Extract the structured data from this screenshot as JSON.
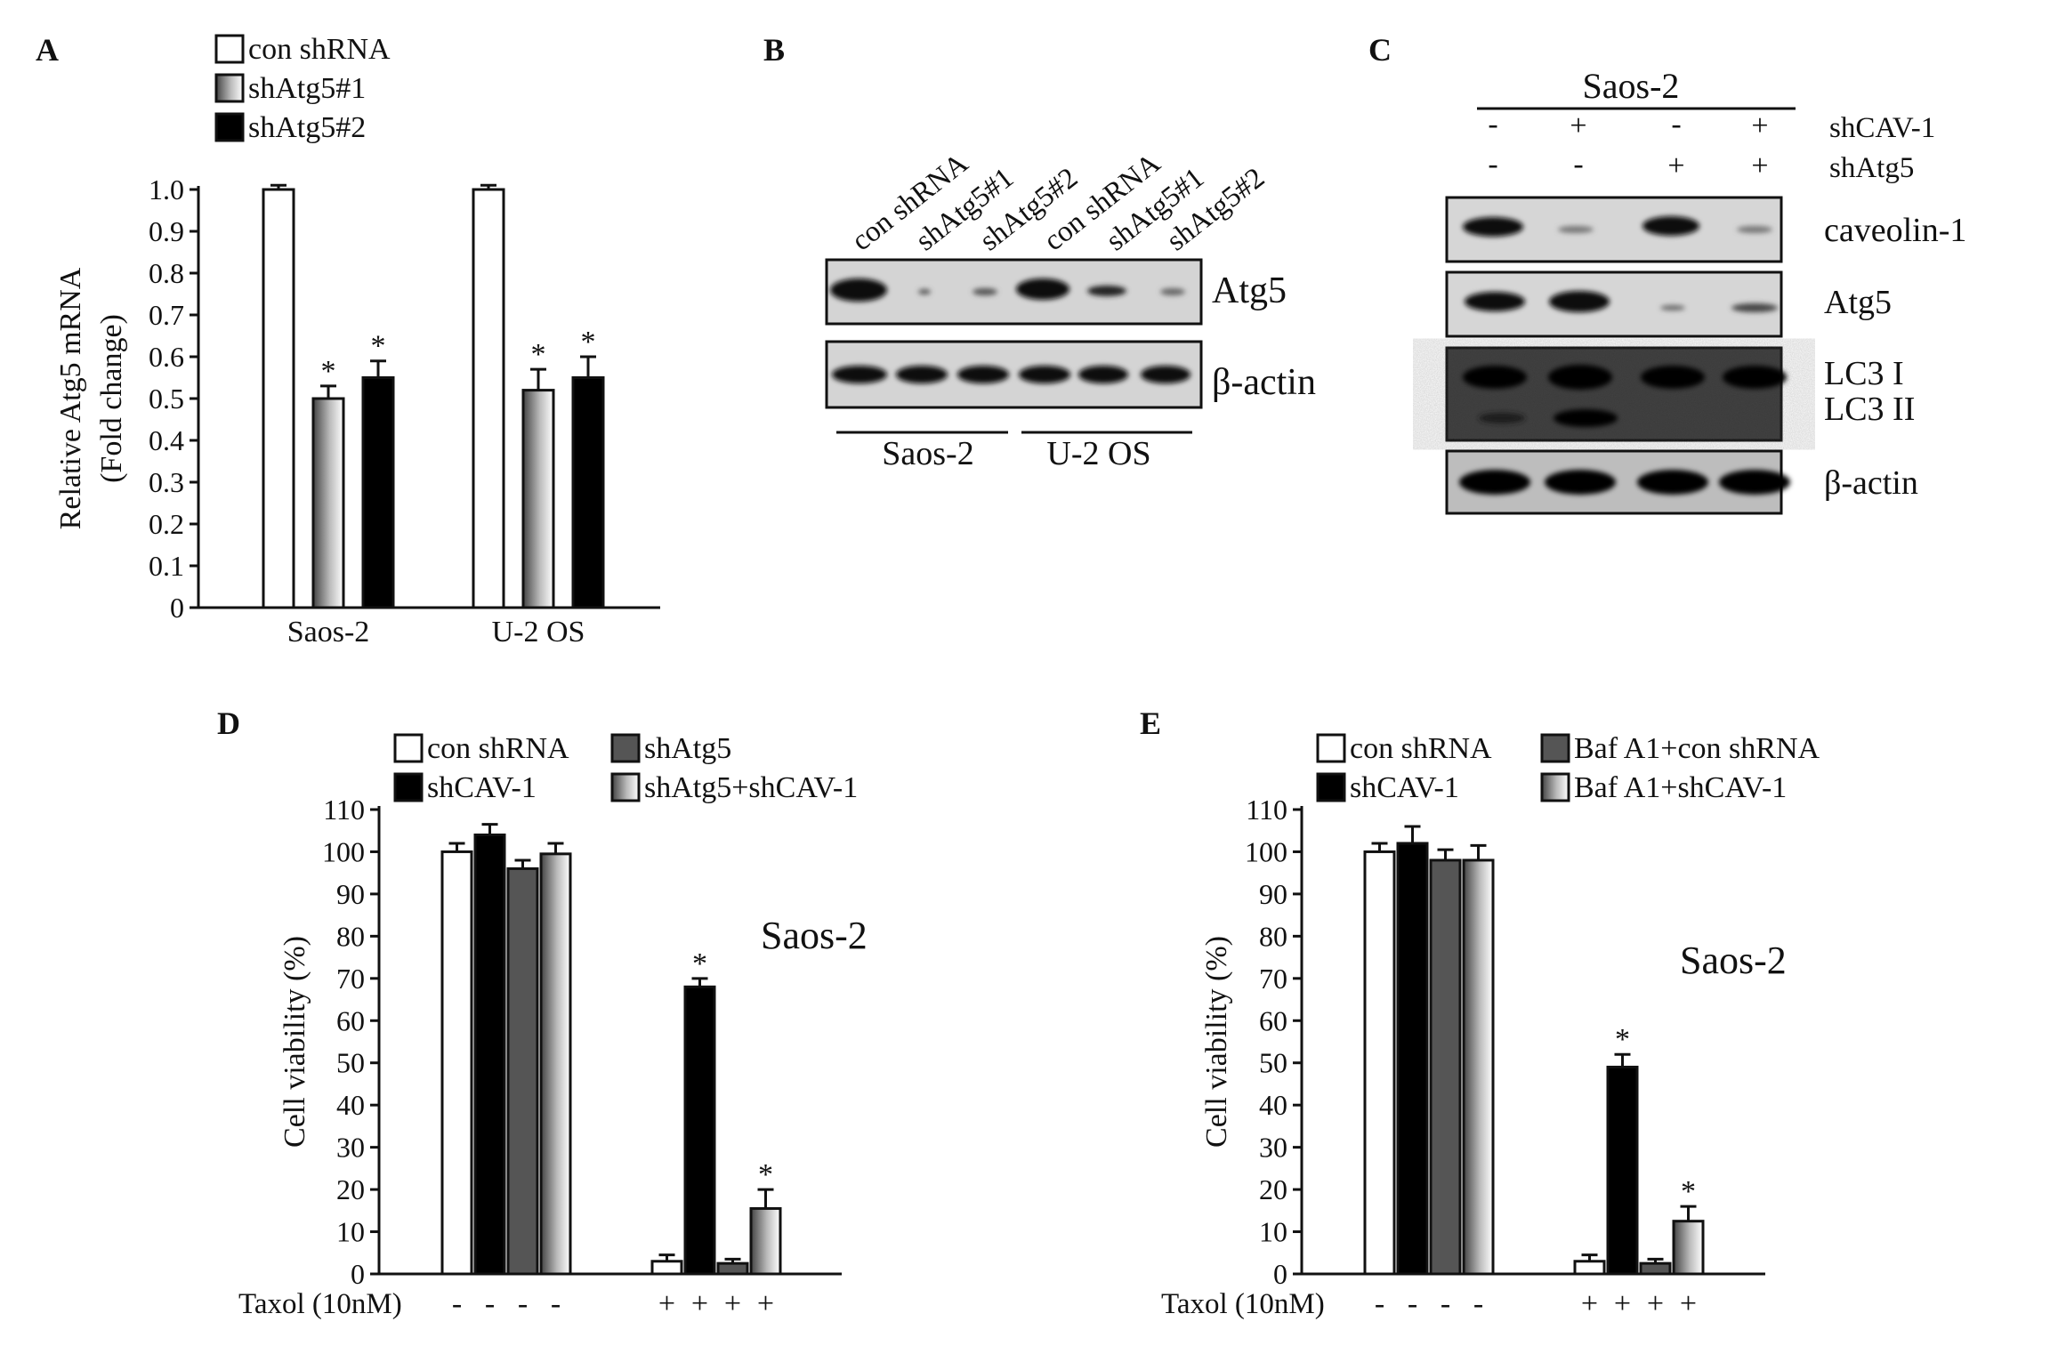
{
  "panels": {
    "A": {
      "letter": "A",
      "legend": [
        {
          "name": "con shRNA",
          "fill": "white"
        },
        {
          "name": "shAtg5#1",
          "fill": "gradient"
        },
        {
          "name": "shAtg5#2",
          "fill": "black"
        }
      ],
      "ylabel_line1": "Relative Atg5 mRNA",
      "ylabel_line2": "(Fold change)",
      "y_ticks": [
        "0",
        "0.1",
        "0.2",
        "0.3",
        "0.4",
        "0.5",
        "0.6",
        "0.7",
        "0.8",
        "0.9",
        "1.0"
      ],
      "star": "*"
    },
    "B": {
      "letter": "B",
      "lanes": [
        "con shRNA",
        "shAtg5#1",
        "shAtg5#2",
        "con shRNA",
        "shAtg5#1",
        "shAtg5#2"
      ],
      "bands": [
        "Atg5",
        "β-actin"
      ],
      "groups": [
        "Saos-2",
        "U-2 OS"
      ]
    },
    "C": {
      "letter": "C",
      "cell_line": "Saos-2",
      "rows": [
        {
          "label": "shCAV-1",
          "signs": [
            "-",
            "+",
            "-",
            "+"
          ]
        },
        {
          "label": "shAtg5",
          "signs": [
            "-",
            "-",
            "+",
            "+"
          ]
        }
      ],
      "bands": [
        "caveolin-1",
        "Atg5",
        "LC3 I",
        "LC3 II",
        "β-actin"
      ]
    },
    "D": {
      "letter": "D",
      "legend": [
        {
          "name": "con shRNA",
          "fill": "white"
        },
        {
          "name": "shCAV-1",
          "fill": "black"
        },
        {
          "name": "shAtg5",
          "fill": "#555555"
        },
        {
          "name": "shAtg5+shCAV-1",
          "fill": "gradient"
        }
      ],
      "ylabel": "Cell viability (%)",
      "y_ticks": [
        "0",
        "10",
        "20",
        "30",
        "40",
        "50",
        "60",
        "70",
        "80",
        "90",
        "100",
        "110"
      ],
      "annotation": "Saos-2",
      "taxol_label": "Taxol (10nM)",
      "taxol_signs": [
        "-",
        "-",
        "-",
        "-",
        "+",
        "+",
        "+",
        "+"
      ],
      "star": "*"
    },
    "E": {
      "letter": "E",
      "legend": [
        {
          "name": "con shRNA",
          "fill": "white"
        },
        {
          "name": "shCAV-1",
          "fill": "black"
        },
        {
          "name": "Baf A1+con shRNA",
          "fill": "#555555"
        },
        {
          "name": "Baf A1+shCAV-1",
          "fill": "gradient"
        }
      ],
      "ylabel": "Cell viability (%)",
      "y_ticks": [
        "0",
        "10",
        "20",
        "30",
        "40",
        "50",
        "60",
        "70",
        "80",
        "90",
        "100",
        "110"
      ],
      "annotation": "Saos-2",
      "taxol_label": "Taxol (10nM)",
      "taxol_signs": [
        "-",
        "-",
        "-",
        "-",
        "+",
        "+",
        "+",
        "+"
      ],
      "star": "*"
    }
  },
  "chart_data": [
    {
      "panel": "A",
      "type": "bar",
      "categories": [
        "Saos-2",
        "U-2 OS"
      ],
      "ylabel": "Relative Atg5 mRNA (Fold change)",
      "ylim": [
        0,
        1.0
      ],
      "series": [
        {
          "name": "con shRNA",
          "values": [
            1.0,
            1.0
          ],
          "errors": [
            0.01,
            0.01
          ],
          "significant": [
            false,
            false
          ]
        },
        {
          "name": "shAtg5#1",
          "values": [
            0.5,
            0.52
          ],
          "errors": [
            0.03,
            0.05
          ],
          "significant": [
            true,
            true
          ]
        },
        {
          "name": "shAtg5#2",
          "values": [
            0.55,
            0.55
          ],
          "errors": [
            0.04,
            0.05
          ],
          "significant": [
            true,
            true
          ]
        }
      ]
    },
    {
      "panel": "D",
      "type": "bar",
      "categories": [
        "-",
        "+"
      ],
      "xlabel": "Taxol (10nM)",
      "ylabel": "Cell viability (%)",
      "ylim": [
        0,
        110
      ],
      "series": [
        {
          "name": "con shRNA",
          "values": [
            100,
            3
          ],
          "errors": [
            2,
            1.5
          ],
          "significant": [
            false,
            false
          ]
        },
        {
          "name": "shCAV-1",
          "values": [
            104,
            68
          ],
          "errors": [
            2.5,
            2
          ],
          "significant": [
            false,
            true
          ]
        },
        {
          "name": "shAtg5",
          "values": [
            96,
            2.5
          ],
          "errors": [
            2,
            1
          ],
          "significant": [
            false,
            false
          ]
        },
        {
          "name": "shAtg5+shCAV-1",
          "values": [
            99.5,
            15.5
          ],
          "errors": [
            2.5,
            4.5
          ],
          "significant": [
            false,
            true
          ]
        }
      ]
    },
    {
      "panel": "E",
      "type": "bar",
      "categories": [
        "-",
        "+"
      ],
      "xlabel": "Taxol (10nM)",
      "ylabel": "Cell viability (%)",
      "ylim": [
        0,
        110
      ],
      "series": [
        {
          "name": "con shRNA",
          "values": [
            100,
            3
          ],
          "errors": [
            2,
            1.5
          ],
          "significant": [
            false,
            false
          ]
        },
        {
          "name": "shCAV-1",
          "values": [
            102,
            49
          ],
          "errors": [
            4,
            3
          ],
          "significant": [
            false,
            true
          ]
        },
        {
          "name": "Baf A1+con shRNA",
          "values": [
            98,
            2.5
          ],
          "errors": [
            2.5,
            1
          ],
          "significant": [
            false,
            false
          ]
        },
        {
          "name": "Baf A1+shCAV-1",
          "values": [
            98,
            12.5
          ],
          "errors": [
            3.5,
            3.5
          ],
          "significant": [
            false,
            true
          ]
        }
      ]
    }
  ]
}
